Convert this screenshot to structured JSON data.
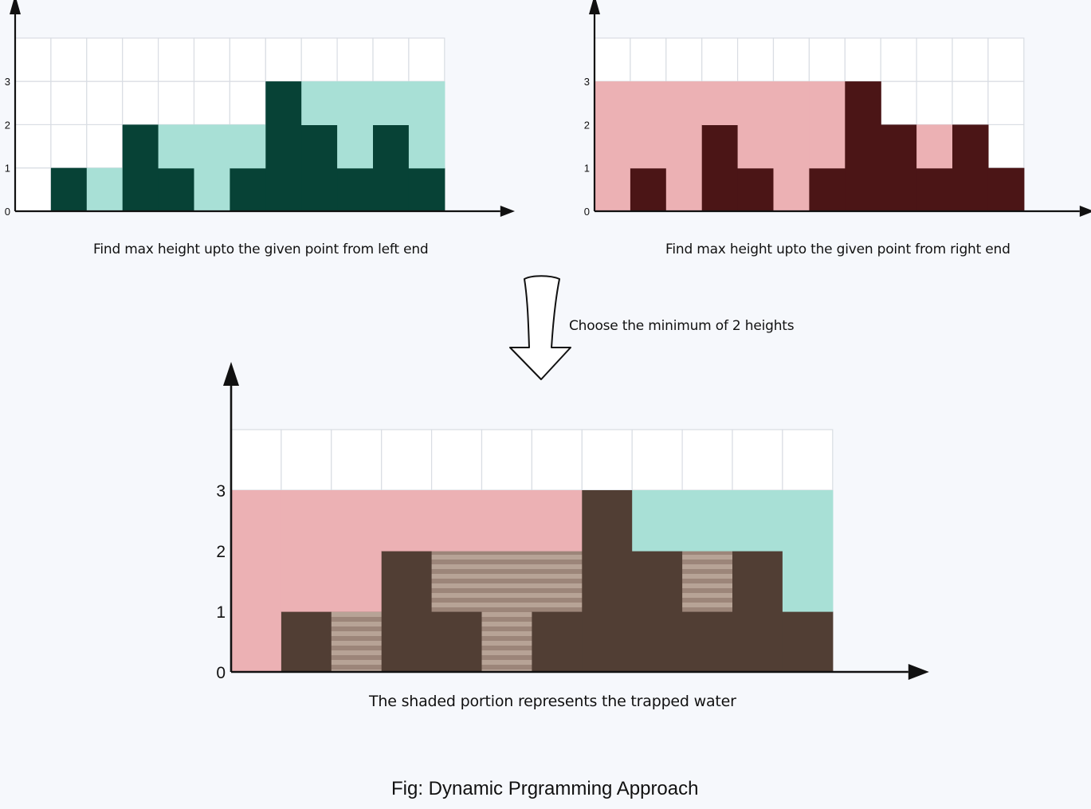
{
  "left_panel": {
    "caption": "Find max height upto the given point from left end",
    "y_ticks": [
      "0",
      "1",
      "2",
      "3"
    ],
    "bar_color": "#074236",
    "fill_color": "#a8e0d6"
  },
  "right_panel": {
    "caption": "Find max height upto the given point from right end",
    "y_ticks": [
      "0",
      "1",
      "2",
      "3"
    ],
    "bar_color": "#4b1516",
    "fill_color": "#ecb1b4"
  },
  "arrow": {
    "label": "Choose the minimum of 2 heights"
  },
  "bottom_panel": {
    "caption": "The shaded portion represents the trapped water",
    "y_ticks": [
      "0",
      "1",
      "2",
      "3"
    ],
    "bar_color": "#513e34",
    "left_fill_color": "#ecb1b4",
    "right_fill_color": "#a8e0d6",
    "water_color": "#b7a396"
  },
  "figure_caption": "Fig: Dynamic Prgramming Approach",
  "chart_data": {
    "type": "bar",
    "heights": [
      0,
      1,
      0,
      2,
      1,
      0,
      1,
      3,
      2,
      1,
      2,
      1
    ],
    "left_max": [
      0,
      1,
      1,
      2,
      2,
      2,
      2,
      3,
      3,
      3,
      3,
      3
    ],
    "right_max": [
      3,
      3,
      3,
      3,
      3,
      3,
      3,
      3,
      2,
      2,
      2,
      1
    ],
    "trapped_water": [
      0,
      0,
      1,
      0,
      1,
      2,
      1,
      0,
      0,
      1,
      0,
      0
    ],
    "ylim": [
      0,
      4
    ],
    "y_ticks": [
      0,
      1,
      2,
      3
    ]
  }
}
